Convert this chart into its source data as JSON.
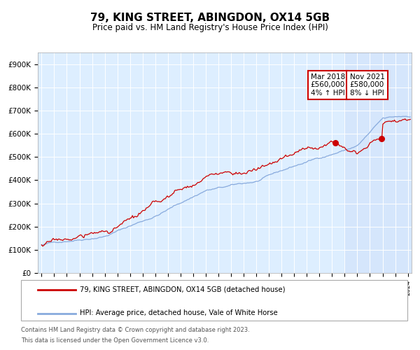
{
  "title": "79, KING STREET, ABINGDON, OX14 5GB",
  "subtitle": "Price paid vs. HM Land Registry's House Price Index (HPI)",
  "legend_line1": "79, KING STREET, ABINGDON, OX14 5GB (detached house)",
  "legend_line2": "HPI: Average price, detached house, Vale of White Horse",
  "footnote1": "Contains HM Land Registry data © Crown copyright and database right 2023.",
  "footnote2": "This data is licensed under the Open Government Licence v3.0.",
  "annotation1_date": "Mar 2018",
  "annotation1_price": "£560,000",
  "annotation1_hpi": "4% ↑ HPI",
  "annotation2_date": "Nov 2021",
  "annotation2_price": "£580,000",
  "annotation2_hpi": "8% ↓ HPI",
  "ann1_x": 2018.25,
  "ann1_y": 560000,
  "ann2_x": 2021.92,
  "ann2_y": 580000,
  "yticks": [
    0,
    100000,
    200000,
    300000,
    400000,
    500000,
    600000,
    700000,
    800000,
    900000
  ],
  "ytick_labels": [
    "£0",
    "£100K",
    "£200K",
    "£300K",
    "£400K",
    "£500K",
    "£600K",
    "£700K",
    "£800K",
    "£900K"
  ],
  "xlim_start": 1994.7,
  "xlim_end": 2024.3,
  "ylim_min": 0,
  "ylim_max": 950000,
  "price_color": "#cc0000",
  "hpi_color": "#88aadd",
  "background_color": "#ddeeff",
  "plot_bg_color": "#ffffff",
  "annotation_bg": "#ffffff",
  "annotation_border": "#cc0000",
  "highlight_start": 2019.0
}
